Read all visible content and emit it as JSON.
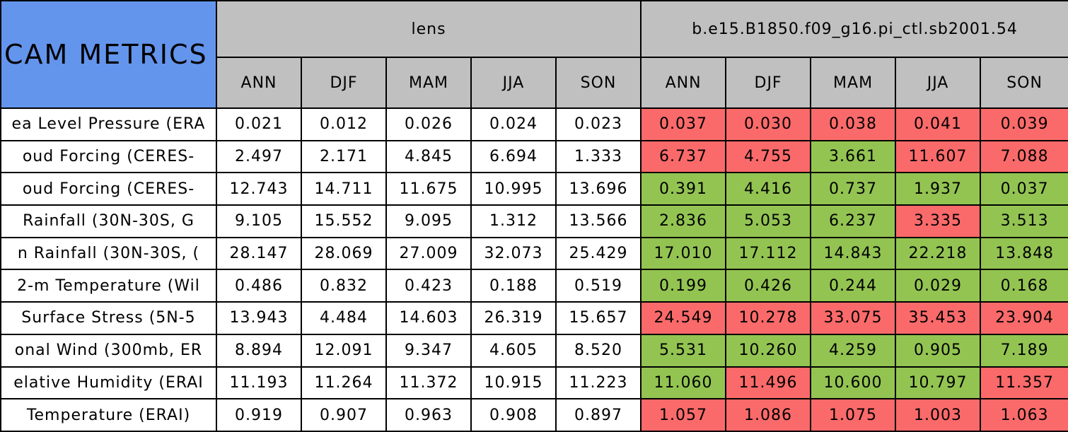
{
  "header": {
    "title": "CAM METRICS",
    "groups": [
      {
        "name": "lens",
        "seasons": [
          "ANN",
          "DJF",
          "MAM",
          "JJA",
          "SON"
        ]
      },
      {
        "name": "b.e15.B1850.f09_g16.pi_ctl.sb2001.54",
        "seasons": [
          "ANN",
          "DJF",
          "MAM",
          "JJA",
          "SON"
        ]
      }
    ]
  },
  "table": {
    "rows": [
      {
        "label": "ea Level Pressure (ERA",
        "cells": [
          {
            "value": "0.021",
            "color": "#ffffff"
          },
          {
            "value": "0.012",
            "color": "#ffffff"
          },
          {
            "value": "0.026",
            "color": "#ffffff"
          },
          {
            "value": "0.024",
            "color": "#ffffff"
          },
          {
            "value": "0.023",
            "color": "#ffffff"
          },
          {
            "value": "0.037",
            "color": "#fb6a6a"
          },
          {
            "value": "0.030",
            "color": "#fb6a6a"
          },
          {
            "value": "0.038",
            "color": "#fb6a6a"
          },
          {
            "value": "0.041",
            "color": "#fb6a6a"
          },
          {
            "value": "0.039",
            "color": "#fb6a6a"
          }
        ]
      },
      {
        "label": "oud Forcing (CERES-",
        "cells": [
          {
            "value": "2.497",
            "color": "#ffffff"
          },
          {
            "value": "2.171",
            "color": "#ffffff"
          },
          {
            "value": "4.845",
            "color": "#ffffff"
          },
          {
            "value": "6.694",
            "color": "#ffffff"
          },
          {
            "value": "1.333",
            "color": "#ffffff"
          },
          {
            "value": "6.737",
            "color": "#fb6a6a"
          },
          {
            "value": "4.755",
            "color": "#fb6a6a"
          },
          {
            "value": "3.661",
            "color": "#93c452"
          },
          {
            "value": "11.607",
            "color": "#fb6a6a"
          },
          {
            "value": "7.088",
            "color": "#fb6a6a"
          }
        ]
      },
      {
        "label": "oud Forcing (CERES-",
        "cells": [
          {
            "value": "12.743",
            "color": "#ffffff"
          },
          {
            "value": "14.711",
            "color": "#ffffff"
          },
          {
            "value": "11.675",
            "color": "#ffffff"
          },
          {
            "value": "10.995",
            "color": "#ffffff"
          },
          {
            "value": "13.696",
            "color": "#ffffff"
          },
          {
            "value": "0.391",
            "color": "#93c452"
          },
          {
            "value": "4.416",
            "color": "#93c452"
          },
          {
            "value": "0.737",
            "color": "#93c452"
          },
          {
            "value": "1.937",
            "color": "#93c452"
          },
          {
            "value": "0.037",
            "color": "#93c452"
          }
        ]
      },
      {
        "label": "Rainfall (30N-30S, G",
        "cells": [
          {
            "value": "9.105",
            "color": "#ffffff"
          },
          {
            "value": "15.552",
            "color": "#ffffff"
          },
          {
            "value": "9.095",
            "color": "#ffffff"
          },
          {
            "value": "1.312",
            "color": "#ffffff"
          },
          {
            "value": "13.566",
            "color": "#ffffff"
          },
          {
            "value": "2.836",
            "color": "#93c452"
          },
          {
            "value": "5.053",
            "color": "#93c452"
          },
          {
            "value": "6.237",
            "color": "#93c452"
          },
          {
            "value": "3.335",
            "color": "#fb6a6a"
          },
          {
            "value": "3.513",
            "color": "#93c452"
          }
        ]
      },
      {
        "label": "n Rainfall (30N-30S, (",
        "cells": [
          {
            "value": "28.147",
            "color": "#ffffff"
          },
          {
            "value": "28.069",
            "color": "#ffffff"
          },
          {
            "value": "27.009",
            "color": "#ffffff"
          },
          {
            "value": "32.073",
            "color": "#ffffff"
          },
          {
            "value": "25.429",
            "color": "#ffffff"
          },
          {
            "value": "17.010",
            "color": "#93c452"
          },
          {
            "value": "17.112",
            "color": "#93c452"
          },
          {
            "value": "14.843",
            "color": "#93c452"
          },
          {
            "value": "22.218",
            "color": "#93c452"
          },
          {
            "value": "13.848",
            "color": "#93c452"
          }
        ]
      },
      {
        "label": "2-m Temperature (Wil",
        "cells": [
          {
            "value": "0.486",
            "color": "#ffffff"
          },
          {
            "value": "0.832",
            "color": "#ffffff"
          },
          {
            "value": "0.423",
            "color": "#ffffff"
          },
          {
            "value": "0.188",
            "color": "#ffffff"
          },
          {
            "value": "0.519",
            "color": "#ffffff"
          },
          {
            "value": "0.199",
            "color": "#93c452"
          },
          {
            "value": "0.426",
            "color": "#93c452"
          },
          {
            "value": "0.244",
            "color": "#93c452"
          },
          {
            "value": "0.029",
            "color": "#93c452"
          },
          {
            "value": "0.168",
            "color": "#93c452"
          }
        ]
      },
      {
        "label": "Surface Stress (5N-5",
        "cells": [
          {
            "value": "13.943",
            "color": "#ffffff"
          },
          {
            "value": "4.484",
            "color": "#ffffff"
          },
          {
            "value": "14.603",
            "color": "#ffffff"
          },
          {
            "value": "26.319",
            "color": "#ffffff"
          },
          {
            "value": "15.657",
            "color": "#ffffff"
          },
          {
            "value": "24.549",
            "color": "#fb6a6a"
          },
          {
            "value": "10.278",
            "color": "#fb6a6a"
          },
          {
            "value": "33.075",
            "color": "#fb6a6a"
          },
          {
            "value": "35.453",
            "color": "#fb6a6a"
          },
          {
            "value": "23.904",
            "color": "#fb6a6a"
          }
        ]
      },
      {
        "label": "onal Wind (300mb, ER",
        "cells": [
          {
            "value": "8.894",
            "color": "#ffffff"
          },
          {
            "value": "12.091",
            "color": "#ffffff"
          },
          {
            "value": "9.347",
            "color": "#ffffff"
          },
          {
            "value": "4.605",
            "color": "#ffffff"
          },
          {
            "value": "8.520",
            "color": "#ffffff"
          },
          {
            "value": "5.531",
            "color": "#93c452"
          },
          {
            "value": "10.260",
            "color": "#93c452"
          },
          {
            "value": "4.259",
            "color": "#93c452"
          },
          {
            "value": "0.905",
            "color": "#93c452"
          },
          {
            "value": "7.189",
            "color": "#93c452"
          }
        ]
      },
      {
        "label": "elative Humidity (ERAI",
        "cells": [
          {
            "value": "11.193",
            "color": "#ffffff"
          },
          {
            "value": "11.264",
            "color": "#ffffff"
          },
          {
            "value": "11.372",
            "color": "#ffffff"
          },
          {
            "value": "10.915",
            "color": "#ffffff"
          },
          {
            "value": "11.223",
            "color": "#ffffff"
          },
          {
            "value": "11.060",
            "color": "#93c452"
          },
          {
            "value": "11.496",
            "color": "#fb6a6a"
          },
          {
            "value": "10.600",
            "color": "#93c452"
          },
          {
            "value": "10.797",
            "color": "#93c452"
          },
          {
            "value": "11.357",
            "color": "#fb6a6a"
          }
        ]
      },
      {
        "label": "Temperature (ERAI)",
        "cells": [
          {
            "value": "0.919",
            "color": "#ffffff"
          },
          {
            "value": "0.907",
            "color": "#ffffff"
          },
          {
            "value": "0.963",
            "color": "#ffffff"
          },
          {
            "value": "0.908",
            "color": "#ffffff"
          },
          {
            "value": "0.897",
            "color": "#ffffff"
          },
          {
            "value": "1.057",
            "color": "#fb6a6a"
          },
          {
            "value": "1.086",
            "color": "#fb6a6a"
          },
          {
            "value": "1.075",
            "color": "#fb6a6a"
          },
          {
            "value": "1.003",
            "color": "#fb6a6a"
          },
          {
            "value": "1.063",
            "color": "#fb6a6a"
          }
        ]
      }
    ]
  }
}
